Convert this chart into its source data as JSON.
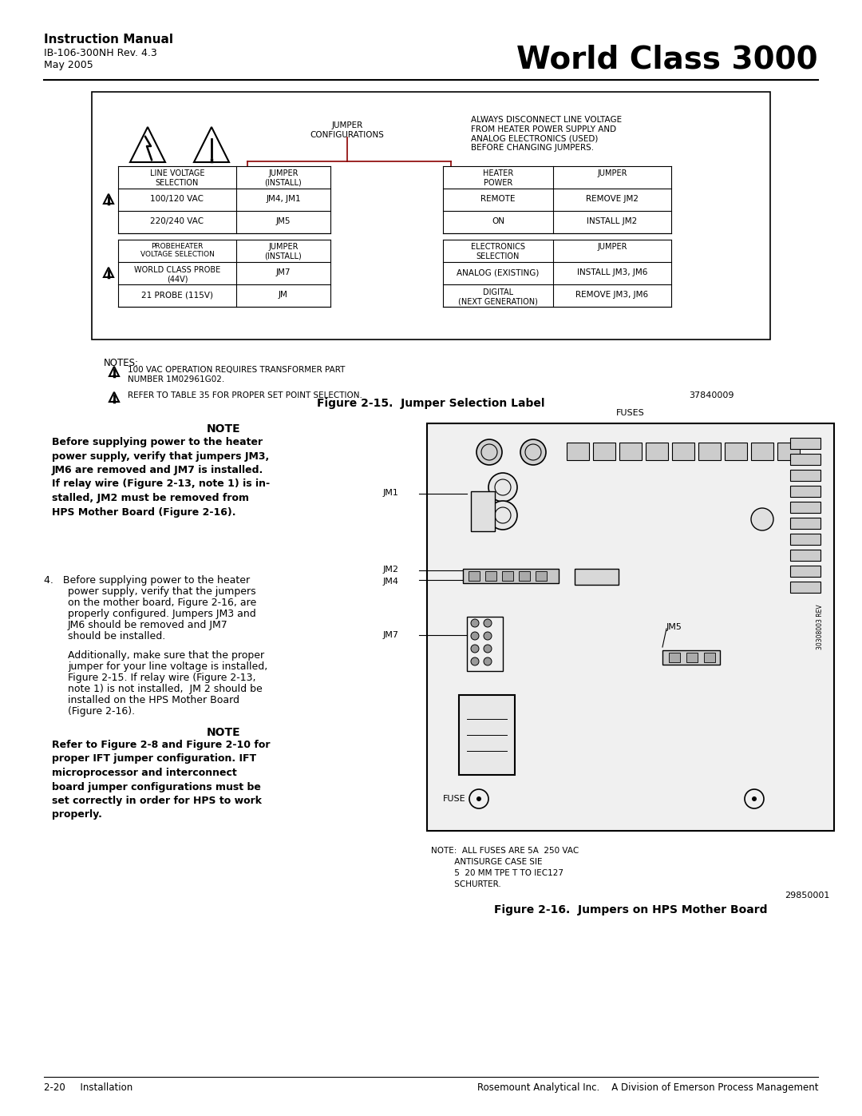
{
  "page_title_bold": "Instruction Manual",
  "page_subtitle1": "IB-106-300NH Rev. 4.3",
  "page_subtitle2": "May 2005",
  "page_brand": "World Class 3000",
  "footer_left": "2-20     Installation",
  "footer_right": "Rosemount Analytical Inc.    A Division of Emerson Process Management",
  "fig1_caption": "Figure 2-15.  Jumper Selection Label",
  "fig2_caption": "Figure 2-16.  Jumpers on HPS Mother Board",
  "warning_text": "ALWAYS DISCONNECT LINE VOLTAGE\nFROM HEATER POWER SUPPLY AND\nANALOG ELECTRONICS (USED)\nBEFORE CHANGING JUMPERS.",
  "jumper_config_label": "JUMPER\nCONFIGURATIONS",
  "notes_header": "NOTES:",
  "note1": "100 VAC OPERATION REQUIRES TRANSFORMER PART\nNUMBER 1M02961G02.",
  "note2": "REFER TO TABLE 35 FOR PROPER SET POINT SELECTION.",
  "note_fig_num": "37840009",
  "note_bold_header": "NOTE",
  "note_bold_text": "Before supplying power to the heater\npower supply, verify that jumpers JM3,\nJM6 are removed and JM7 is installed.\nIf relay wire (Figure 2-13, note 1) is in-\nstalled, JM2 must be removed from\nHPS Mother Board (Figure 2-16).",
  "note2_header": "NOTE",
  "note2_text": "Refer to Figure 2-8 and Figure 2-10 for\nproper IFT jumper configuration. IFT\nmicroprocessor and interconnect\nboard jumper configurations must be\nset correctly in order for HPS to work\nproperly.",
  "fig2_note_line1": "NOTE:  ALL FUSES ARE 5A  250 VAC",
  "fig2_note_line2": "         ANTISURGE CASE SIE",
  "fig2_note_line3": "         5  20 MM TPE T TO IEC127",
  "fig2_note_line4": "         SCHURTER.",
  "fig2_note_num": "29850001",
  "bg_color": "#ffffff"
}
